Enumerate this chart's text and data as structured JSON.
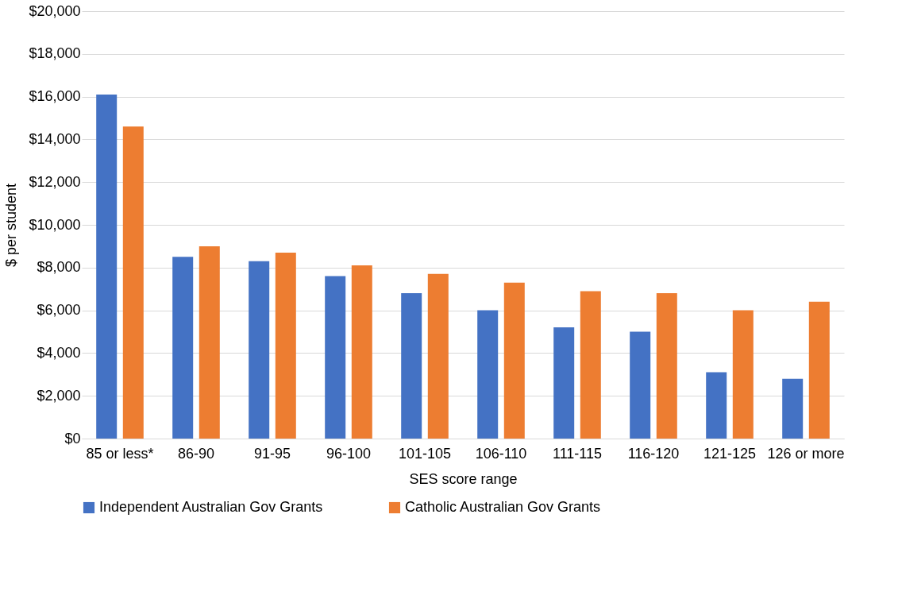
{
  "chart_data": {
    "type": "bar",
    "xlabel": "SES score range",
    "ylabel": "$ per student",
    "categories": [
      "85 or less*",
      "86-90",
      "91-95",
      "96-100",
      "101-105",
      "106-110",
      "111-115",
      "116-120",
      "121-125",
      "126 or more"
    ],
    "series": [
      {
        "name": "Independent Australian Gov Grants",
        "color": "#4472c4",
        "values": [
          16100,
          8500,
          8300,
          7600,
          6800,
          6000,
          5200,
          5000,
          3100,
          2800
        ]
      },
      {
        "name": "Catholic Australian Gov Grants",
        "color": "#ed7d31",
        "values": [
          14600,
          9000,
          8700,
          8100,
          7700,
          7300,
          6900,
          6800,
          6000,
          6400
        ]
      }
    ],
    "ylim": [
      0,
      20000
    ],
    "yticks": [
      {
        "value": 0,
        "label": "$0"
      },
      {
        "value": 2000,
        "label": "$2,000"
      },
      {
        "value": 4000,
        "label": "$4,000"
      },
      {
        "value": 6000,
        "label": "$6,000"
      },
      {
        "value": 8000,
        "label": "$8,000"
      },
      {
        "value": 10000,
        "label": "$10,000"
      },
      {
        "value": 12000,
        "label": "$12,000"
      },
      {
        "value": 14000,
        "label": "$14,000"
      },
      {
        "value": 16000,
        "label": "$16,000"
      },
      {
        "value": 18000,
        "label": "$18,000"
      },
      {
        "value": 20000,
        "label": "$20,000"
      }
    ],
    "grid": "y",
    "legend": "bottom"
  }
}
